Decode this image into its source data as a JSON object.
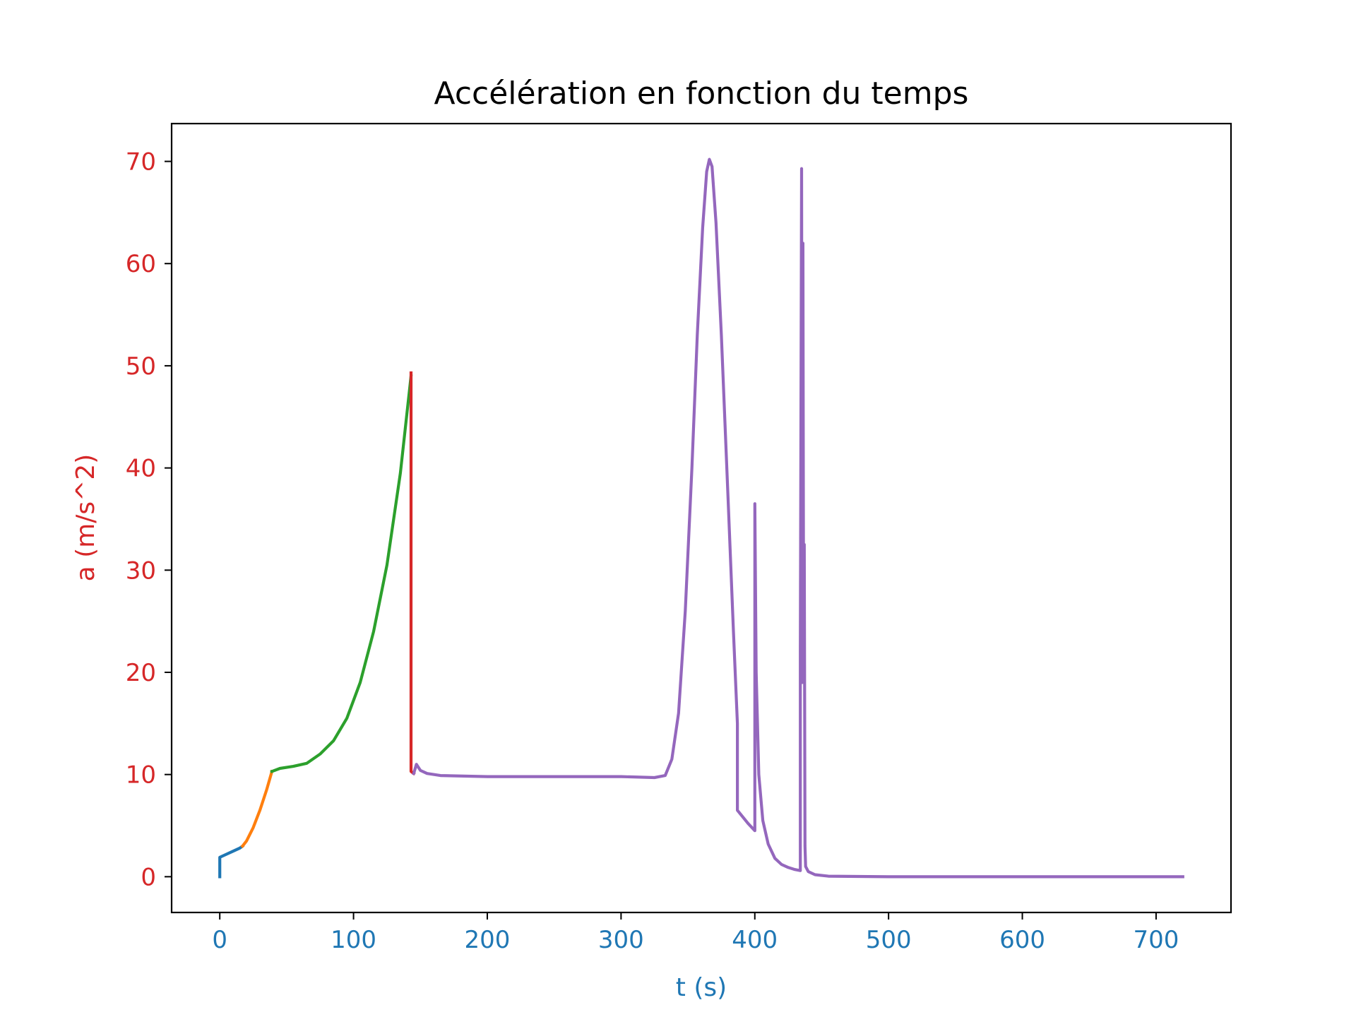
{
  "chart_data": {
    "type": "line",
    "title": "Accélération en fonction du temps",
    "xlabel": "t (s)",
    "ylabel": "a (m/s^2)",
    "xlim": [
      -36,
      756
    ],
    "ylim": [
      -3.5,
      73.7
    ],
    "x_ticks": [
      0,
      100,
      200,
      300,
      400,
      500,
      600,
      700
    ],
    "y_ticks": [
      0,
      10,
      20,
      30,
      40,
      50,
      60,
      70
    ],
    "grid": false,
    "legend": "none",
    "colors": {
      "x_axis": "#1f77b4",
      "y_axis": "#d62728",
      "frame": "#000000"
    },
    "series": [
      {
        "color": "#1f77b4",
        "points": [
          [
            0,
            0
          ],
          [
            0,
            1.9
          ],
          [
            5,
            2.2
          ],
          [
            10,
            2.5
          ],
          [
            15,
            2.8
          ],
          [
            17,
            3.0
          ]
        ]
      },
      {
        "color": "#ff7f0e",
        "points": [
          [
            17,
            3.0
          ],
          [
            20,
            3.5
          ],
          [
            25,
            4.8
          ],
          [
            30,
            6.5
          ],
          [
            35,
            8.5
          ],
          [
            39,
            10.3
          ]
        ]
      },
      {
        "color": "#2ca02c",
        "points": [
          [
            39,
            10.3
          ],
          [
            45,
            10.6
          ],
          [
            55,
            10.8
          ],
          [
            65,
            11.1
          ],
          [
            75,
            12.0
          ],
          [
            85,
            13.3
          ],
          [
            95,
            15.5
          ],
          [
            105,
            19.0
          ],
          [
            115,
            24.0
          ],
          [
            125,
            30.5
          ],
          [
            135,
            39.5
          ],
          [
            143,
            49.0
          ]
        ]
      },
      {
        "color": "#d62728",
        "points": [
          [
            143,
            49.3
          ],
          [
            143,
            10.3
          ],
          [
            145,
            10.1
          ]
        ]
      },
      {
        "color": "#9467bd",
        "points": [
          [
            145,
            10.1
          ],
          [
            147,
            11.0
          ],
          [
            150,
            10.4
          ],
          [
            155,
            10.1
          ],
          [
            165,
            9.9
          ],
          [
            200,
            9.8
          ],
          [
            300,
            9.8
          ],
          [
            325,
            9.7
          ],
          [
            333,
            9.9
          ],
          [
            338,
            11.5
          ],
          [
            343,
            16.0
          ],
          [
            348,
            26.0
          ],
          [
            353,
            40.0
          ],
          [
            357,
            53.0
          ],
          [
            361,
            63.5
          ],
          [
            364,
            69.0
          ],
          [
            366,
            70.2
          ],
          [
            368,
            69.5
          ],
          [
            371,
            64.0
          ],
          [
            375,
            53.0
          ],
          [
            380,
            37.0
          ],
          [
            384,
            24.0
          ],
          [
            387,
            15.0
          ],
          [
            387,
            6.5
          ],
          [
            395,
            5.2
          ],
          [
            400,
            4.5
          ],
          [
            400,
            36.5
          ],
          [
            401,
            20.0
          ],
          [
            403,
            10.0
          ],
          [
            406,
            5.5
          ],
          [
            410,
            3.2
          ],
          [
            415,
            1.8
          ],
          [
            420,
            1.2
          ],
          [
            425,
            0.9
          ],
          [
            430,
            0.7
          ],
          [
            434,
            0.6
          ],
          [
            434,
            22.0
          ],
          [
            435,
            69.3
          ],
          [
            435.5,
            19.0
          ],
          [
            436,
            62.0
          ],
          [
            436.5,
            21.0
          ],
          [
            437,
            32.5
          ],
          [
            437.5,
            3.0
          ],
          [
            438,
            1.0
          ],
          [
            440,
            0.5
          ],
          [
            445,
            0.2
          ],
          [
            455,
            0.05
          ],
          [
            500,
            0.0
          ],
          [
            600,
            0.0
          ],
          [
            720,
            0.0
          ]
        ]
      }
    ]
  }
}
